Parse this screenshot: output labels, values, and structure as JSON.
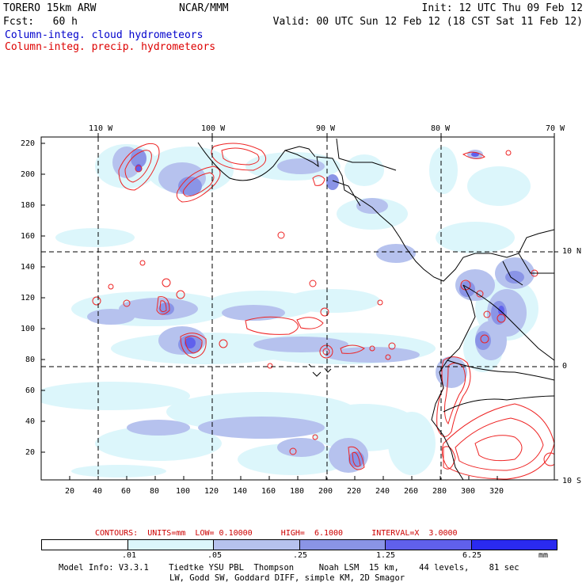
{
  "header": {
    "model": "TORERO  15km ARW",
    "org": "NCAR/MMM",
    "init": "Init: 12 UTC Thu 09 Feb 12",
    "fcst": "Fcst:   60 h",
    "valid": "Valid: 00 UTC Sun 12 Feb 12 (18 CST Sat 11 Feb 12)"
  },
  "fields": {
    "cloud": "Column-integ. cloud hydrometeors",
    "precip": "Column-integ. precip. hydrometeors"
  },
  "colors": {
    "cloud_label": "#0000cc",
    "precip_label": "#dd0000",
    "contour": "#ee2222",
    "shade_levels": [
      "#ffffff",
      "#dcf6fb",
      "#b6c2ee",
      "#8a94e6",
      "#6060ec",
      "#2a2af0"
    ]
  },
  "map": {
    "x_ticks": [
      "20",
      "40",
      "60",
      "80",
      "100",
      "120",
      "140",
      "160",
      "180",
      "200",
      "220",
      "240",
      "260",
      "280",
      "300",
      "320"
    ],
    "y_ticks": [
      "220",
      "200",
      "180",
      "160",
      "140",
      "120",
      "100",
      "80",
      "60",
      "40",
      "20"
    ],
    "lon_labels": [
      "110 W",
      "100 W",
      "90 W",
      "80 W",
      "70 W"
    ],
    "lat_labels": [
      "10 N",
      "0",
      "10 S"
    ]
  },
  "contours": {
    "title": "CONTOURS:  UNITS=mm  LOW= 0.10000      HIGH=  6.1000      INTERVAL=X  3.0000"
  },
  "legend": {
    "labels": [
      ".01",
      ".05",
      ".25",
      "1.25",
      "6.25"
    ],
    "units": "mm"
  },
  "model_info": {
    "line1": "Model Info: V3.3.1    Tiedtke YSU PBL  Thompson     Noah LSM  15 km,    44 levels,    81 sec",
    "line2": "LW, Godd SW, Goddard DIFF, simple KM, 2D Smagor"
  }
}
